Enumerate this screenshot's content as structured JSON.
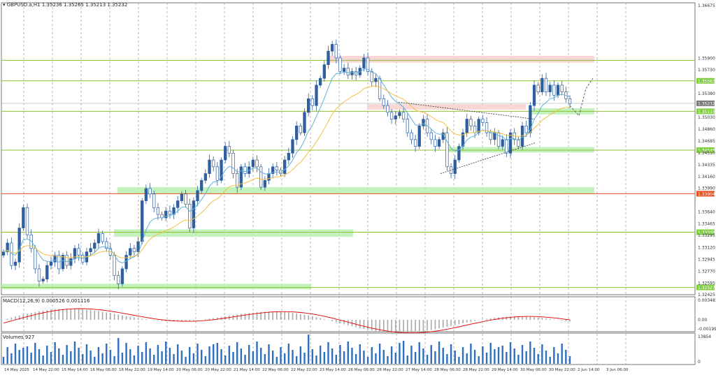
{
  "header": {
    "symbol_label": "GBPUSD.a,H1",
    "ohlc": "1.35236 1.35265 1.35213 1.35232"
  },
  "macd": {
    "label": "MACD(12,26,9) 0.000526 0.001116",
    "ticks": [
      "0.003481",
      "0.00",
      "-0.001998"
    ]
  },
  "volume": {
    "label": "Volumes 927",
    "ticks": [
      "13854",
      "0"
    ]
  },
  "colors": {
    "bg": "#ffffff",
    "candle_bull": "#2f5f9f",
    "candle_bear": "#2f5f9f",
    "level_line": "#8fbf2f",
    "level_tag": "#7fcf3f",
    "support_zone": "#b9f0b0",
    "resist_zone": "#f8d0d0",
    "ema_fast": "#5fb0d8",
    "ema_slow": "#f0c040",
    "macd_signal": "#e00000",
    "macd_hist": "#a8a8a8",
    "volume_bar": "#2f6fbf",
    "current_line": "#e85020",
    "grid": "#8a8a8a"
  },
  "chart_data": [
    {
      "type": "candlestick",
      "title": "GBPUSD.a,H1",
      "ylim": [
        1.3242,
        1.3671
      ],
      "y_ticks": [
        "1.36675",
        "1.35900",
        "1.35730",
        "1.35563",
        "1.35380",
        "1.35232",
        "1.35115",
        "1.35030",
        "1.34860",
        "1.34685",
        "1.34545",
        "1.34510",
        "1.34335",
        "1.34160",
        "1.33990",
        "1.33904",
        "1.33640",
        "1.33465",
        "1.33338",
        "1.33295",
        "1.33120",
        "1.32945",
        "1.32770",
        "1.32595",
        "1.32527",
        "1.32425"
      ],
      "x_ticks": [
        "14 May 2025",
        "14 May 22:00",
        "15 May 14:00",
        "16 May 06:00",
        "16 May 22:00",
        "19 May 14:00",
        "20 May 06:00",
        "20 May 22:00",
        "21 May 14:00",
        "22 May 06:00",
        "22 May 22:00",
        "23 May 14:00",
        "26 May 06:00",
        "26 May 22:00",
        "27 May 14:00",
        "28 May 06:00",
        "28 May 22:00",
        "29 May 14:00",
        "30 May 06:00",
        "30 May 22:00",
        "2 Jun 14:00",
        "3 Jun 06:00"
      ],
      "current_price": "1.35232",
      "levels": [
        {
          "label": "1.35865",
          "value": 1.35865
        },
        {
          "label": "1.35563",
          "value": 1.35563
        },
        {
          "label": "1.35115",
          "value": 1.35115
        },
        {
          "label": "1.34545",
          "value": 1.34545
        },
        {
          "label": "1.33904",
          "value": 1.33904
        },
        {
          "label": "1.33338",
          "value": 1.33338
        },
        {
          "label": "1.32527",
          "value": 1.32527
        }
      ],
      "series": [
        {
          "name": "close",
          "values": [
            1.3305,
            1.3318,
            1.3285,
            1.329,
            1.334,
            1.337,
            1.333,
            1.331,
            1.328,
            1.3262,
            1.3265,
            1.3285,
            1.329,
            1.33,
            1.328,
            1.33,
            1.3285,
            1.3295,
            1.331,
            1.33,
            1.329,
            1.3305,
            1.331,
            1.3318,
            1.3332,
            1.332,
            1.331,
            1.33,
            1.327,
            1.3258,
            1.328,
            1.33,
            1.331,
            1.3305,
            1.332,
            1.338,
            1.3398,
            1.339,
            1.337,
            1.336,
            1.3355,
            1.3365,
            1.336,
            1.337,
            1.338,
            1.339,
            1.3375,
            1.334,
            1.338,
            1.3395,
            1.341,
            1.342,
            1.344,
            1.343,
            1.341,
            1.344,
            1.346,
            1.345,
            1.342,
            1.34,
            1.343,
            1.342,
            1.343,
            1.344,
            1.343,
            1.34,
            1.341,
            1.342,
            1.343,
            1.3425,
            1.342,
            1.344,
            1.345,
            1.347,
            1.349,
            1.348,
            1.351,
            1.353,
            1.352,
            1.355,
            1.356,
            1.358,
            1.36,
            1.361,
            1.359,
            1.357,
            1.3575,
            1.3565,
            1.357,
            1.3565,
            1.3575,
            1.359,
            1.357,
            1.3555,
            1.356,
            1.353,
            1.352,
            1.351,
            1.35,
            1.3505,
            1.351,
            1.35,
            1.348,
            1.347,
            1.346,
            1.349,
            1.35,
            1.348,
            1.347,
            1.346,
            1.347,
            1.348,
            1.343,
            1.342,
            1.344,
            1.346,
            1.348,
            1.35,
            1.349,
            1.348,
            1.35,
            1.3495,
            1.348,
            1.347,
            1.348,
            1.346,
            1.347,
            1.345,
            1.348,
            1.347,
            1.346,
            1.349,
            1.348,
            1.352,
            1.355,
            1.354,
            1.356,
            1.354,
            1.355,
            1.3535,
            1.355,
            1.354,
            1.353,
            1.3523
          ]
        }
      ]
    },
    {
      "type": "bar",
      "title": "MACD(12,26,9) 0.000526 0.001116",
      "ylim": [
        -0.001998,
        0.003481
      ]
    },
    {
      "type": "bar",
      "title": "Volumes 927",
      "ylim": [
        0,
        13854
      ]
    }
  ]
}
